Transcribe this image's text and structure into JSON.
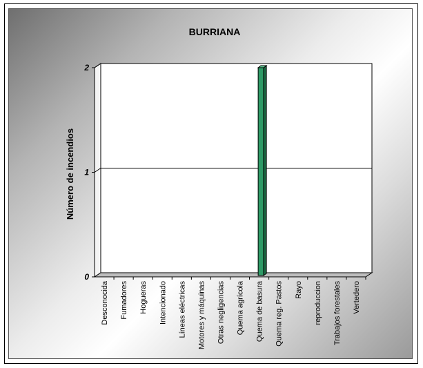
{
  "chart_data": {
    "type": "bar",
    "title": "BURRIANA",
    "ylabel": "Número de incendios",
    "xlabel": "",
    "ylim": [
      0,
      2
    ],
    "yticks": [
      "0",
      "1",
      "2"
    ],
    "categories": [
      "Desconocida",
      "Fumadores",
      "Hogueras",
      "Intencionado",
      "Líneas eléctricas",
      "Motores y máquinas",
      "Otras negligencias",
      "Quema agrícola",
      "Quema de basura",
      "Quema reg. Pastos",
      "Rayo",
      "reproduccion",
      "Trabajos forestales",
      "Vertedero"
    ],
    "values": [
      0,
      0,
      0,
      0,
      0,
      0,
      0,
      0,
      2,
      0,
      0,
      0,
      0,
      0
    ],
    "grid": true,
    "bar_color": "#2e9a66"
  }
}
